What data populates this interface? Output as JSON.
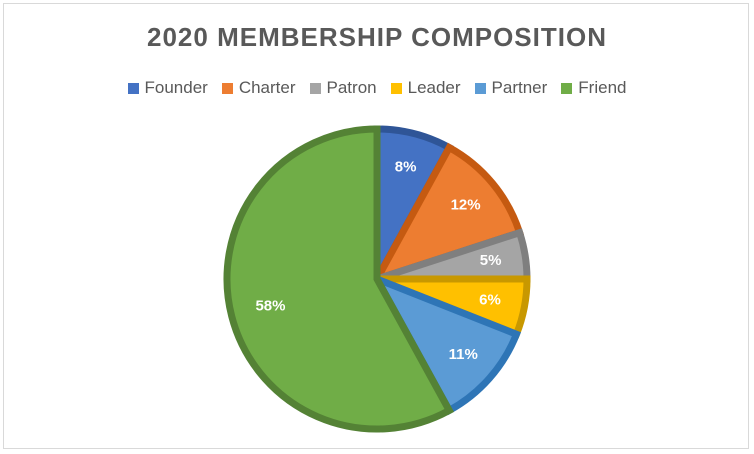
{
  "chart_data": {
    "type": "pie",
    "title": "2020 MEMBERSHIP COMPOSITION",
    "legend_position": "top",
    "slices": [
      {
        "name": "Founder",
        "value": 8,
        "label": "8%",
        "color": "#4472c4",
        "edge": "#2f5597"
      },
      {
        "name": "Charter",
        "value": 12,
        "label": "12%",
        "color": "#ed7d31",
        "edge": "#c55a11"
      },
      {
        "name": "Patron",
        "value": 5,
        "label": "5%",
        "color": "#a5a5a5",
        "edge": "#7f7f7f"
      },
      {
        "name": "Leader",
        "value": 6,
        "label": "6%",
        "color": "#ffc000",
        "edge": "#c89800"
      },
      {
        "name": "Partner",
        "value": 11,
        "label": "11%",
        "color": "#5b9bd5",
        "edge": "#2e75b6"
      },
      {
        "name": "Friend",
        "value": 58,
        "label": "58%",
        "color": "#70ad47",
        "edge": "#548235"
      }
    ]
  }
}
